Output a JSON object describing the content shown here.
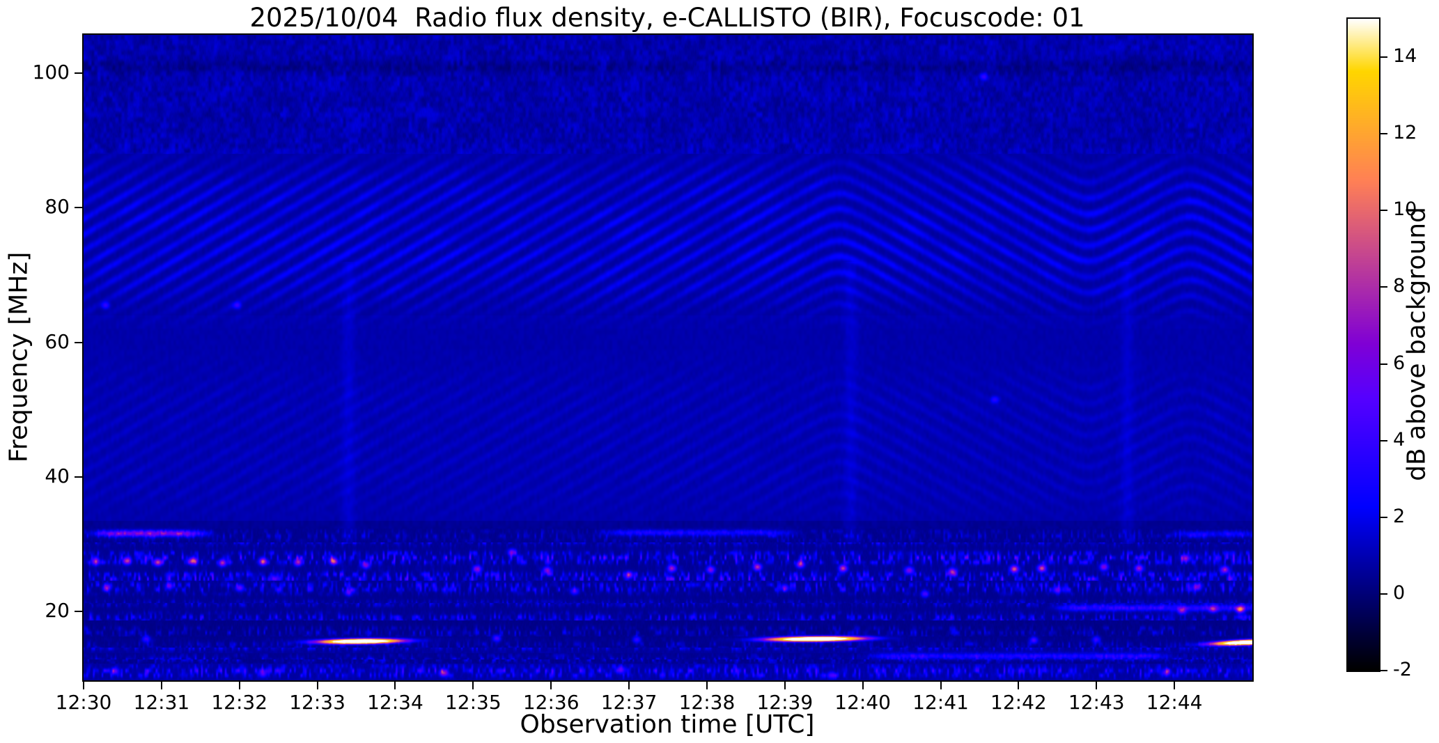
{
  "chart_data": {
    "type": "heatmap",
    "subtype": "solar-radio-spectrogram",
    "title": "2025/10/04  Radio flux density, e-CALLISTO (BIR), Focuscode: 01",
    "xlabel": "Observation time [UTC]",
    "ylabel": "Frequency [MHz]",
    "colorbar_label": "dB above background",
    "colormap": "gnuplot2",
    "instrument": "e-CALLISTO (BIR)",
    "date": "2025/10/04",
    "focuscode": "01",
    "x_start_utc": "12:30",
    "x_end_utc": "12:45",
    "x_range_min": [
      0,
      15
    ],
    "x_tick_labels": [
      "12:30",
      "12:31",
      "12:32",
      "12:33",
      "12:34",
      "12:35",
      "12:36",
      "12:37",
      "12:38",
      "12:39",
      "12:40",
      "12:41",
      "12:42",
      "12:43",
      "12:44"
    ],
    "y_range_mhz": [
      9.8,
      105.7
    ],
    "y_ticks_mhz": [
      20,
      40,
      60,
      80,
      100
    ],
    "y_tick_labels": [
      "20",
      "40",
      "60",
      "80",
      "100"
    ],
    "color_range_db": [
      -2,
      15
    ],
    "colorbar_ticks_db": [
      -2,
      0,
      2,
      4,
      6,
      8,
      10,
      12,
      14
    ],
    "colorbar_tick_labels": [
      "-2",
      "0",
      "2",
      "4",
      "6",
      "8",
      "10",
      "12",
      "14"
    ],
    "background_level_db": 0.8,
    "grid": false,
    "bursts": [
      {
        "label": "bright burst 12:33-12:34",
        "t_center_min": 3.55,
        "t_halfwidth_min": 0.52,
        "freq_mhz": 15.55,
        "tilt_mhz_per_min": 0.15,
        "peak_db": 15
      },
      {
        "label": "bright burst 12:39-12:40",
        "t_center_min": 9.4,
        "t_halfwidth_min": 0.6,
        "freq_mhz": 15.9,
        "tilt_mhz_per_min": 0.12,
        "peak_db": 15
      },
      {
        "label": "bright burst at right edge ~12:45",
        "t_center_min": 14.95,
        "t_halfwidth_min": 0.45,
        "freq_mhz": 15.4,
        "tilt_mhz_per_min": 0.5,
        "peak_db": 15
      }
    ],
    "narrowband_events": [
      {
        "t_start_min": 0.25,
        "t_end_min": 1.45,
        "freq_mhz": 31.6,
        "peak_db": 6.5
      },
      {
        "t_start_min": 6.8,
        "t_end_min": 9.0,
        "freq_mhz": 31.7,
        "peak_db": 2.6
      },
      {
        "t_start_min": 14.1,
        "t_end_min": 15.0,
        "freq_mhz": 31.5,
        "peak_db": 2.2
      },
      {
        "t_start_min": 10.2,
        "t_end_min": 13.8,
        "freq_mhz": 13.35,
        "peak_db": 2.8
      },
      {
        "t_start_min": 12.6,
        "t_end_min": 15.0,
        "freq_mhz": 20.5,
        "peak_db": 3.6
      }
    ],
    "fringe_bands": [
      {
        "f_lo_mhz": 64,
        "f_hi_mhz": 88,
        "amp_db": 1.6,
        "period_mhz": 2.35,
        "vertex_times_min": [
          9.7,
          12.9,
          14.2
        ]
      },
      {
        "f_lo_mhz": 33.5,
        "f_hi_mhz": 57,
        "amp_db": 0.5,
        "period_mhz": 2.35,
        "vertex_times_min": [
          9.7,
          12.9,
          14.2
        ]
      }
    ],
    "noise_bands": [
      {
        "f_lo": 88,
        "f_hi": 105.7,
        "base": 0.35,
        "speckle": 1.5,
        "style": "mottled"
      },
      {
        "f_lo": 64,
        "f_hi": 88,
        "base": 0.55,
        "speckle": 0.3,
        "style": "plain"
      },
      {
        "f_lo": 33.5,
        "f_hi": 64,
        "base": 0.7,
        "speckle": 0.3,
        "style": "plain"
      },
      {
        "f_lo": 32.3,
        "f_hi": 33.5,
        "base": 0.3,
        "speckle": 0.35,
        "style": "plain"
      },
      {
        "f_lo": 30.3,
        "f_hi": 32.3,
        "base": 0.25,
        "speckle": 0.8,
        "style": "dots"
      },
      {
        "f_lo": 24.6,
        "f_hi": 30.3,
        "base": 0.35,
        "speckle": 2.4,
        "style": "dots"
      },
      {
        "f_lo": 21.2,
        "f_hi": 24.6,
        "base": 0.3,
        "speckle": 1.7,
        "style": "dots"
      },
      {
        "f_lo": 18.7,
        "f_hi": 21.2,
        "base": 0.3,
        "speckle": 1.8,
        "style": "dots"
      },
      {
        "f_lo": 16.3,
        "f_hi": 18.7,
        "base": 0.15,
        "speckle": 0.9,
        "style": "dots"
      },
      {
        "f_lo": 14.6,
        "f_hi": 16.3,
        "base": 0.22,
        "speckle": 0.9,
        "style": "dots"
      },
      {
        "f_lo": 13.8,
        "f_hi": 14.6,
        "base": 0.45,
        "speckle": 1.6,
        "style": "dots"
      },
      {
        "f_lo": 12.9,
        "f_hi": 13.8,
        "base": 0.3,
        "speckle": 1.3,
        "style": "dots"
      },
      {
        "f_lo": 12.2,
        "f_hi": 12.9,
        "base": 0.2,
        "speckle": 0.9,
        "style": "dots"
      },
      {
        "f_lo": 9.8,
        "f_hi": 12.2,
        "base": 0.55,
        "speckle": 1.9,
        "style": "dots"
      }
    ],
    "rfi_hotspots_t_f_db": [
      [
        0.15,
        27.4,
        7
      ],
      [
        0.55,
        27.5,
        8
      ],
      [
        0.95,
        27.3,
        8.5
      ],
      [
        1.4,
        27.5,
        9
      ],
      [
        1.78,
        27.2,
        7
      ],
      [
        2.3,
        27.4,
        8
      ],
      [
        2.75,
        27.3,
        7
      ],
      [
        3.2,
        27.5,
        7.5
      ],
      [
        3.62,
        26.9,
        6
      ],
      [
        5.05,
        26.3,
        6.5
      ],
      [
        5.5,
        28.8,
        5
      ],
      [
        5.95,
        26.1,
        6
      ],
      [
        7.0,
        25.4,
        6
      ],
      [
        7.55,
        26.4,
        7
      ],
      [
        8.05,
        26.2,
        6
      ],
      [
        8.65,
        26.6,
        7.5
      ],
      [
        9.2,
        27.0,
        7
      ],
      [
        9.75,
        26.4,
        8
      ],
      [
        10.6,
        26.1,
        6
      ],
      [
        11.15,
        25.9,
        7
      ],
      [
        11.95,
        26.3,
        9
      ],
      [
        12.3,
        26.4,
        8.5
      ],
      [
        13.1,
        26.6,
        6
      ],
      [
        13.55,
        26.4,
        7
      ],
      [
        14.15,
        27.9,
        6.5
      ],
      [
        14.65,
        26.2,
        7
      ],
      [
        0.3,
        23.6,
        5
      ],
      [
        1.1,
        23.8,
        4.5
      ],
      [
        2.0,
        23.5,
        5
      ],
      [
        3.4,
        22.8,
        4
      ],
      [
        6.3,
        23.0,
        4
      ],
      [
        9.0,
        23.5,
        4.5
      ],
      [
        10.8,
        22.6,
        4
      ],
      [
        12.5,
        23.2,
        5
      ],
      [
        14.3,
        23.6,
        5.5
      ],
      [
        4.62,
        10.85,
        7
      ],
      [
        0.4,
        11.1,
        4.5
      ],
      [
        2.3,
        10.7,
        4
      ],
      [
        6.9,
        11.3,
        4
      ],
      [
        9.6,
        10.5,
        4
      ],
      [
        13.9,
        10.9,
        4.5
      ],
      [
        14.1,
        20.1,
        6
      ],
      [
        14.5,
        20.3,
        5
      ],
      [
        14.85,
        20.3,
        9
      ],
      [
        0.28,
        65.5,
        3
      ],
      [
        1.97,
        65.5,
        3
      ],
      [
        11.55,
        99.5,
        3
      ],
      [
        11.7,
        51.5,
        2.5
      ],
      [
        5.3,
        16.0,
        4
      ],
      [
        0.8,
        15.9,
        3.5
      ],
      [
        7.1,
        15.8,
        3.5
      ],
      [
        12.2,
        15.7,
        4
      ],
      [
        13.0,
        15.8,
        3.5
      ]
    ],
    "vertical_streak_times_min": [
      3.4,
      9.85,
      13.4
    ],
    "layout": {
      "accent_black": "#000000",
      "figure_background": "#ffffff"
    }
  }
}
